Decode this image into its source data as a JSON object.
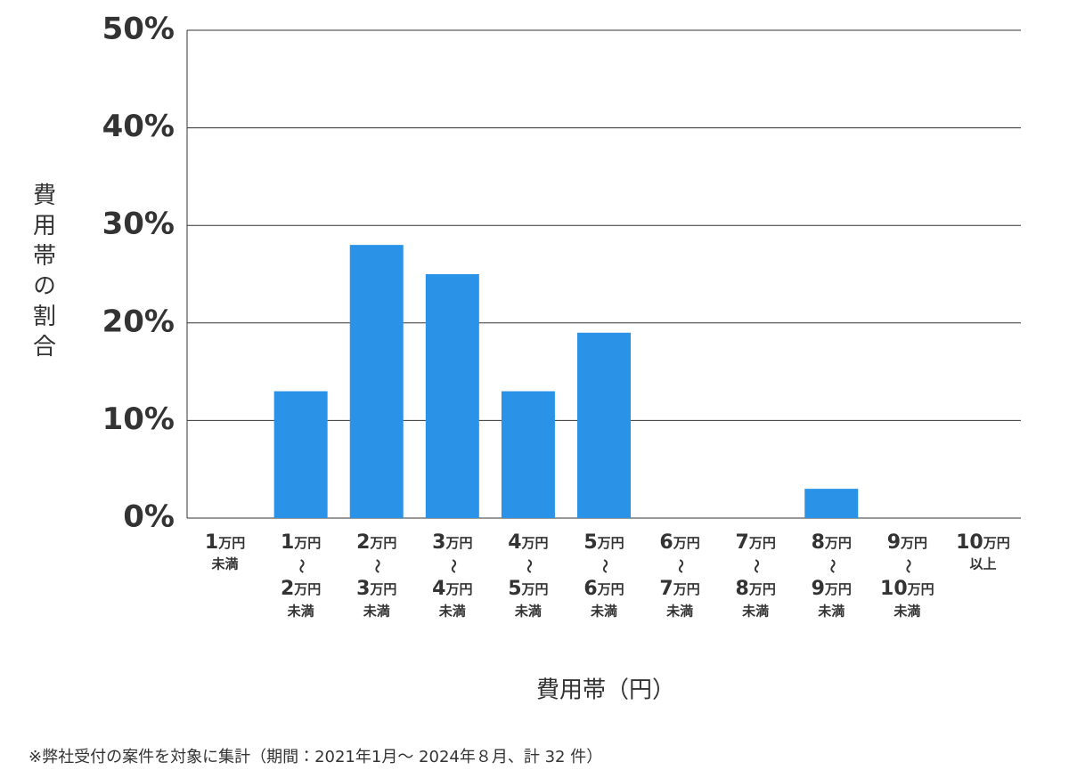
{
  "chart_data": {
    "type": "bar",
    "y_label": "費用帯の割合",
    "x_label": "費用帯（円）",
    "note": "※弊社受付の案件を対象に集計（期間：2021年1月～ 2024年８月、計 32 件）",
    "categories": [
      [
        "1万円",
        "未満"
      ],
      [
        "1万円",
        "〜",
        "2万円",
        "未満"
      ],
      [
        "2万円",
        "〜",
        "3万円",
        "未満"
      ],
      [
        "3万円",
        "〜",
        "4万円",
        "未満"
      ],
      [
        "4万円",
        "〜",
        "5万円",
        "未満"
      ],
      [
        "5万円",
        "〜",
        "6万円",
        "未満"
      ],
      [
        "6万円",
        "〜",
        "7万円",
        "未満"
      ],
      [
        "7万円",
        "〜",
        "8万円",
        "未満"
      ],
      [
        "8万円",
        "〜",
        "9万円",
        "未満"
      ],
      [
        "9万円",
        "〜",
        "10万円",
        "未満"
      ],
      [
        "10万円",
        "以上"
      ]
    ],
    "values": [
      0,
      13,
      28,
      25,
      13,
      19,
      0,
      0,
      3,
      0,
      0
    ],
    "color": "#2a93e8",
    "ylim": [
      0,
      50
    ],
    "yticks": [
      {
        "value": 0,
        "label": "0%"
      },
      {
        "value": 10,
        "label": "10%"
      },
      {
        "value": 20,
        "label": "20%"
      },
      {
        "value": 30,
        "label": "30%"
      },
      {
        "value": 40,
        "label": "40%"
      },
      {
        "value": 50,
        "label": "50%"
      }
    ],
    "grid": true
  }
}
